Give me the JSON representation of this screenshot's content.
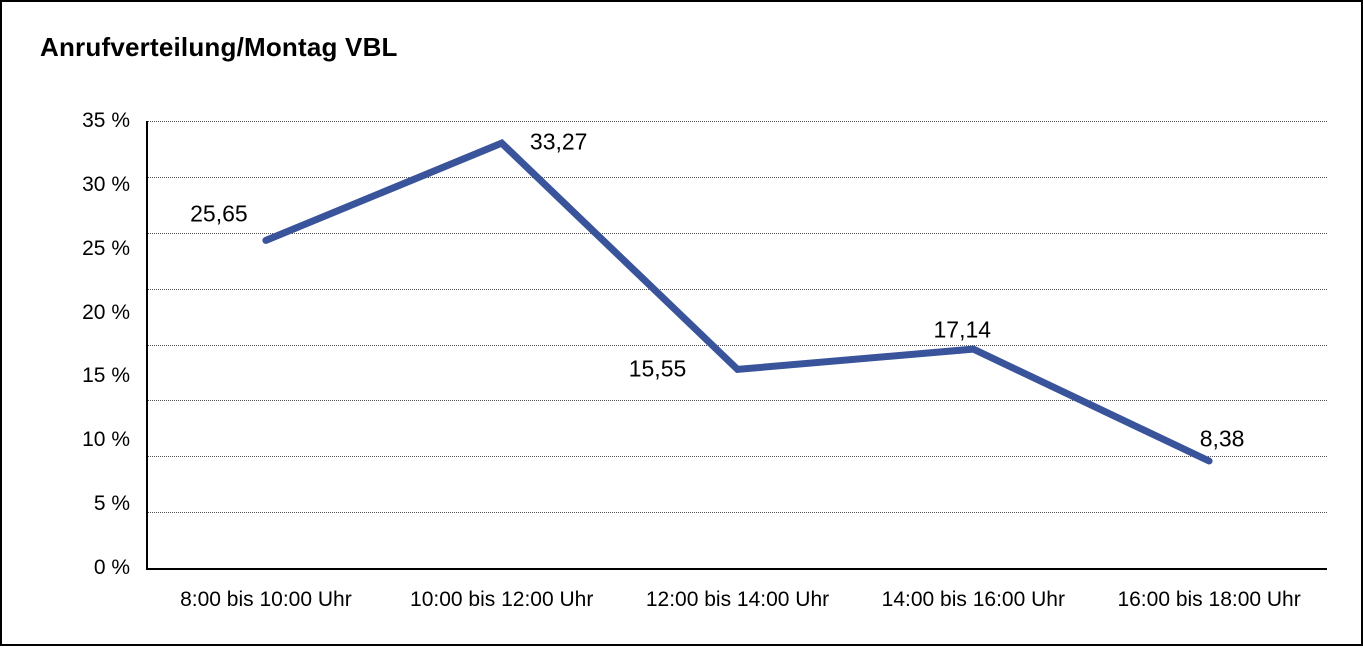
{
  "chart": {
    "title": "Anrufverteilung/Montag VBL"
  },
  "chart_data": {
    "type": "line",
    "title": "Anrufverteilung/Montag VBL",
    "categories": [
      "8:00 bis 10:00 Uhr",
      "10:00 bis 12:00 Uhr",
      "12:00 bis 14:00 Uhr",
      "14:00 bis 16:00 Uhr",
      "16:00 bis 18:00 Uhr"
    ],
    "values": [
      25.65,
      33.27,
      15.55,
      17.14,
      8.38
    ],
    "value_labels": [
      "25,65",
      "33,27",
      "15,55",
      "17,14",
      "8,38"
    ],
    "y_tick_labels": [
      "35 %",
      "30 %",
      "25 %",
      "20 %",
      "15 %",
      "10 %",
      "5 %",
      "0 %"
    ],
    "ylim": [
      0,
      35
    ],
    "xlabel": "",
    "ylabel": "",
    "grid": "horizontal-dotted",
    "legend": "none",
    "line_color": "#3A549B",
    "gridline_color": "#4d4d4d",
    "axis_color": "#000000"
  }
}
